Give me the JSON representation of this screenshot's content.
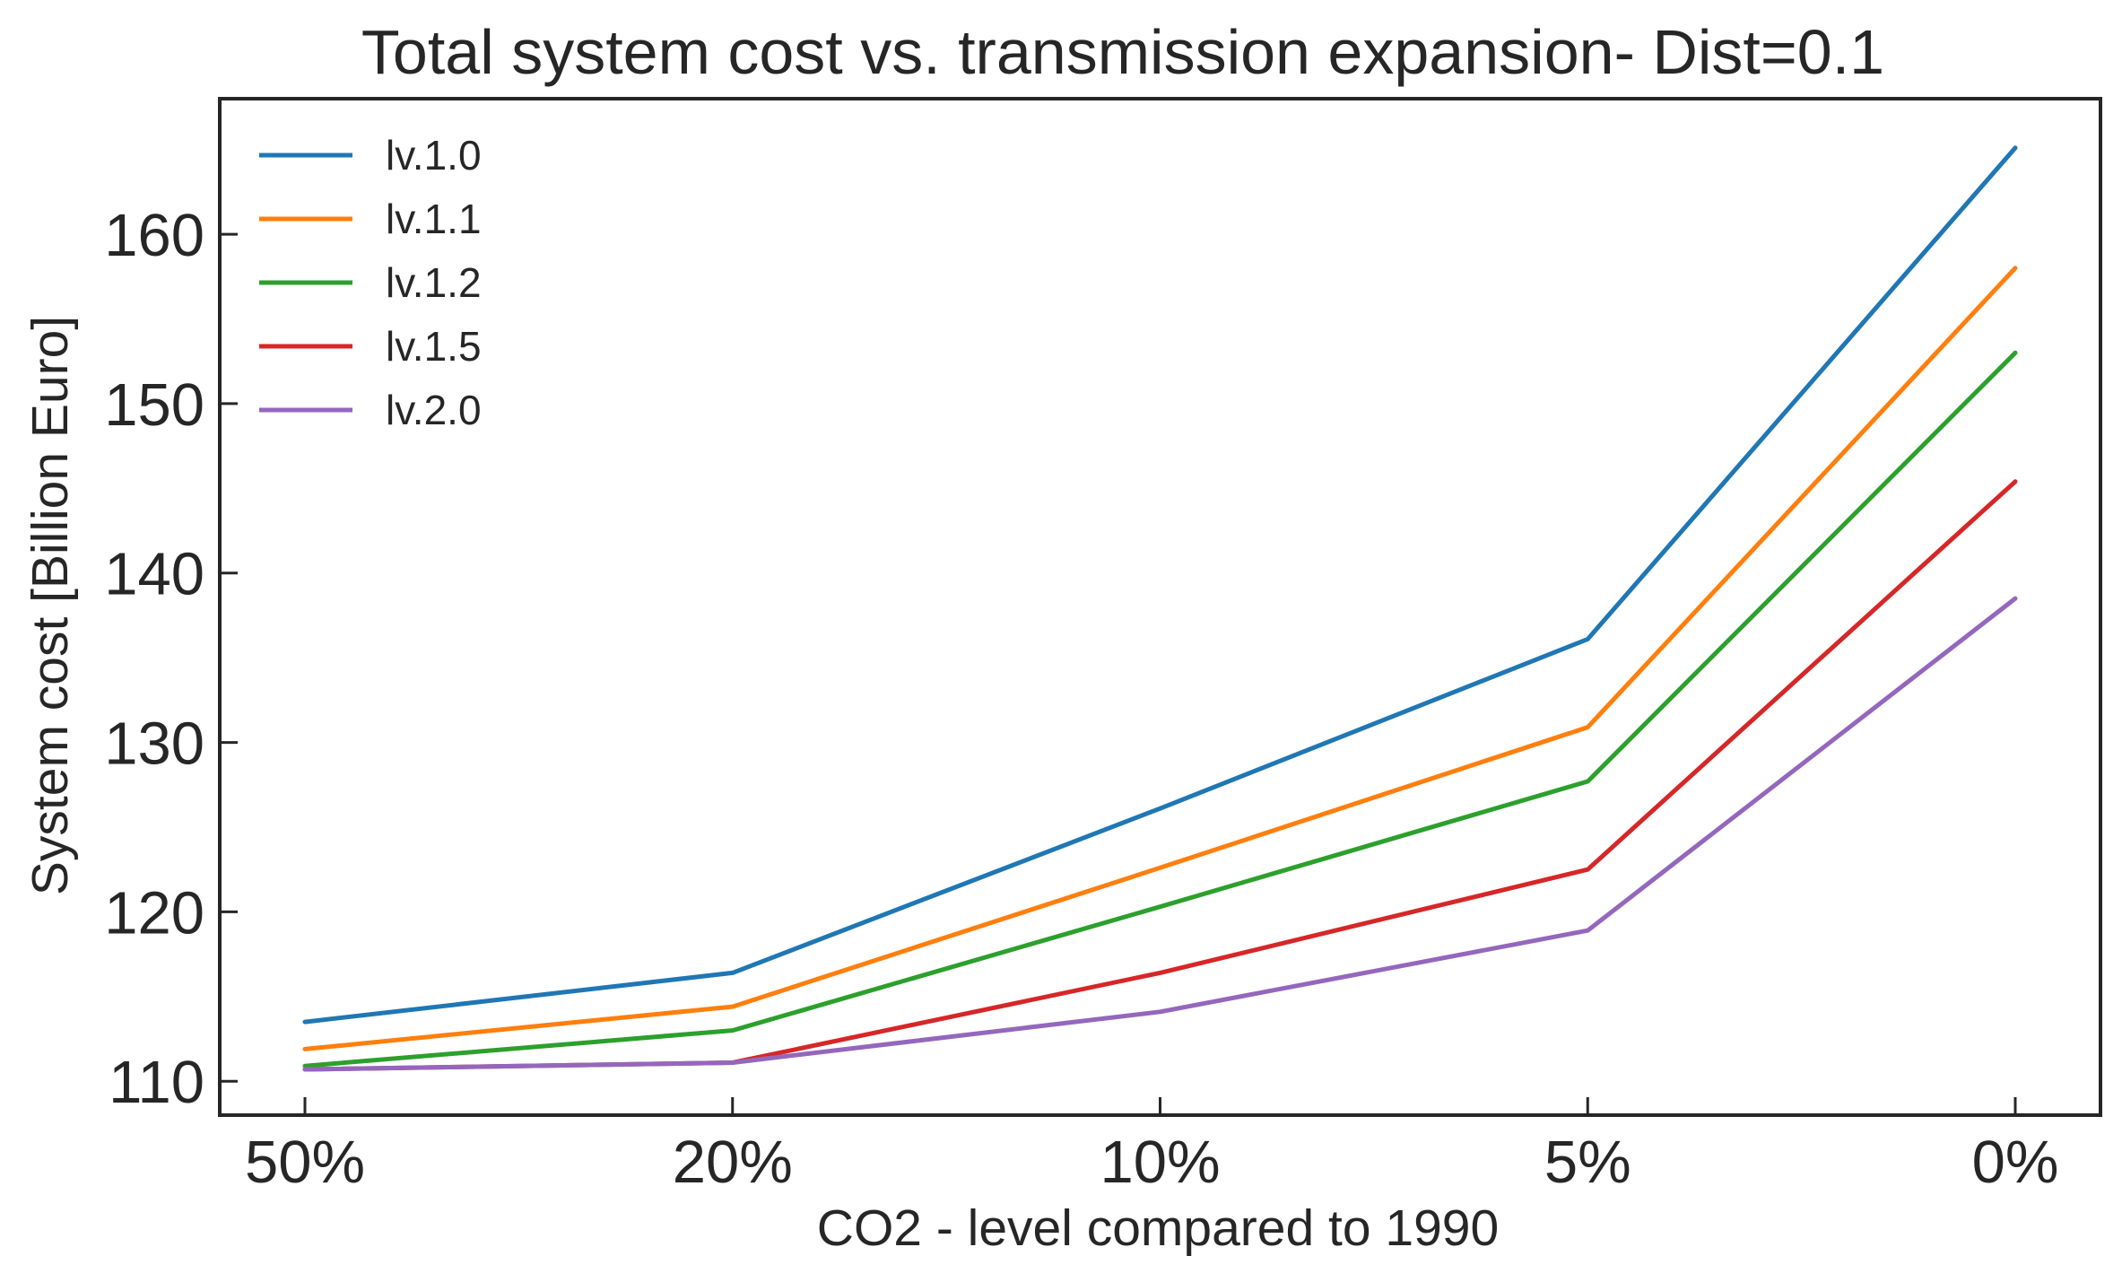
{
  "chart_data": {
    "type": "line",
    "title": "Total system cost vs. transmission expansion- Dist=0.1",
    "xlabel": "CO2 - level compared to 1990",
    "ylabel": "System cost [Billion Euro]",
    "categories": [
      "50%",
      "20%",
      "10%",
      "5%",
      "0%"
    ],
    "ylim": [
      108,
      168
    ],
    "yticks": [
      110,
      120,
      130,
      140,
      150,
      160
    ],
    "grid": false,
    "legend_position": "top-left",
    "series": [
      {
        "name": "lv.1.0",
        "color": "#1f77b4",
        "values": [
          113.5,
          116.4,
          126.1,
          136.1,
          165.1
        ]
      },
      {
        "name": "lv.1.1",
        "color": "#ff7f0e",
        "values": [
          111.9,
          114.4,
          122.6,
          130.9,
          158.0
        ]
      },
      {
        "name": "lv.1.2",
        "color": "#2ca02c",
        "values": [
          110.9,
          113.0,
          120.3,
          127.7,
          153.0
        ]
      },
      {
        "name": "lv.1.5",
        "color": "#d62728",
        "values": [
          110.7,
          111.1,
          116.4,
          122.5,
          145.4
        ]
      },
      {
        "name": "lv.2.0",
        "color": "#9467bd",
        "values": [
          110.7,
          111.1,
          114.1,
          118.9,
          138.5
        ]
      }
    ]
  }
}
